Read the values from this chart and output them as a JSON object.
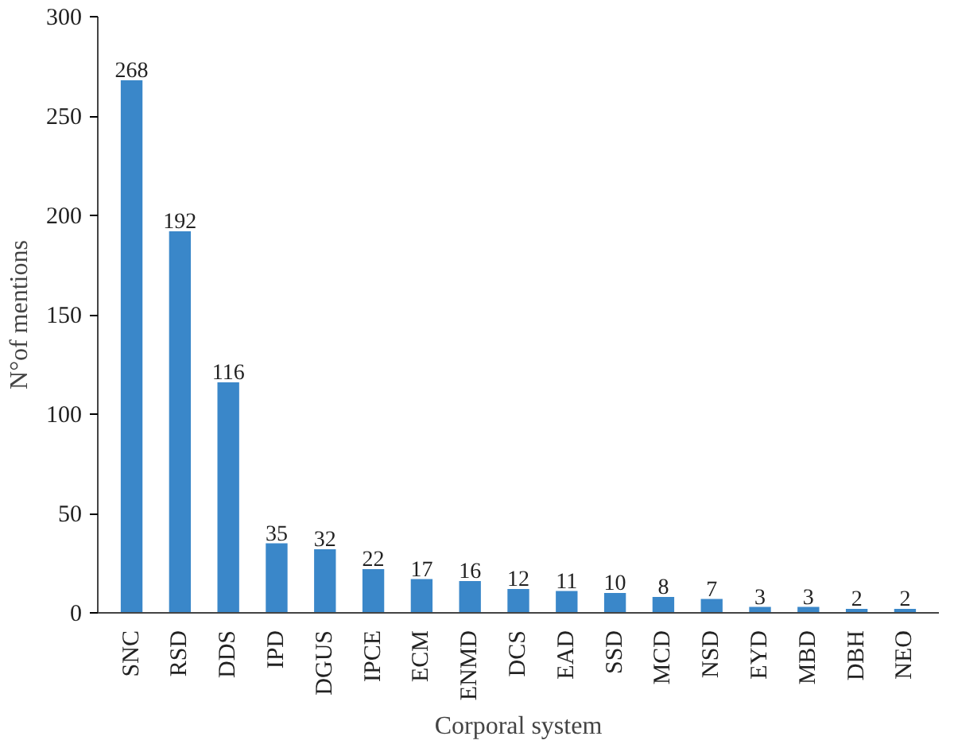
{
  "chart_data": {
    "type": "bar",
    "xlabel": "Corporal system",
    "ylabel": "N°of mentions",
    "categories": [
      "SNC",
      "RSD",
      "DDS",
      "IPD",
      "DGUS",
      "IPCE",
      "ECM",
      "ENMD",
      "DCS",
      "EAD",
      "SSD",
      "MCD",
      "NSD",
      "EYD",
      "MBD",
      "DBH",
      "NEO"
    ],
    "values": [
      268,
      192,
      116,
      35,
      32,
      22,
      17,
      16,
      12,
      11,
      10,
      8,
      7,
      3,
      3,
      2,
      2
    ],
    "color": "#3a87c9",
    "ylim": [
      0,
      300
    ],
    "yticks": [
      0,
      50,
      100,
      150,
      200,
      250,
      300
    ],
    "data_labels": true,
    "grid": false
  }
}
